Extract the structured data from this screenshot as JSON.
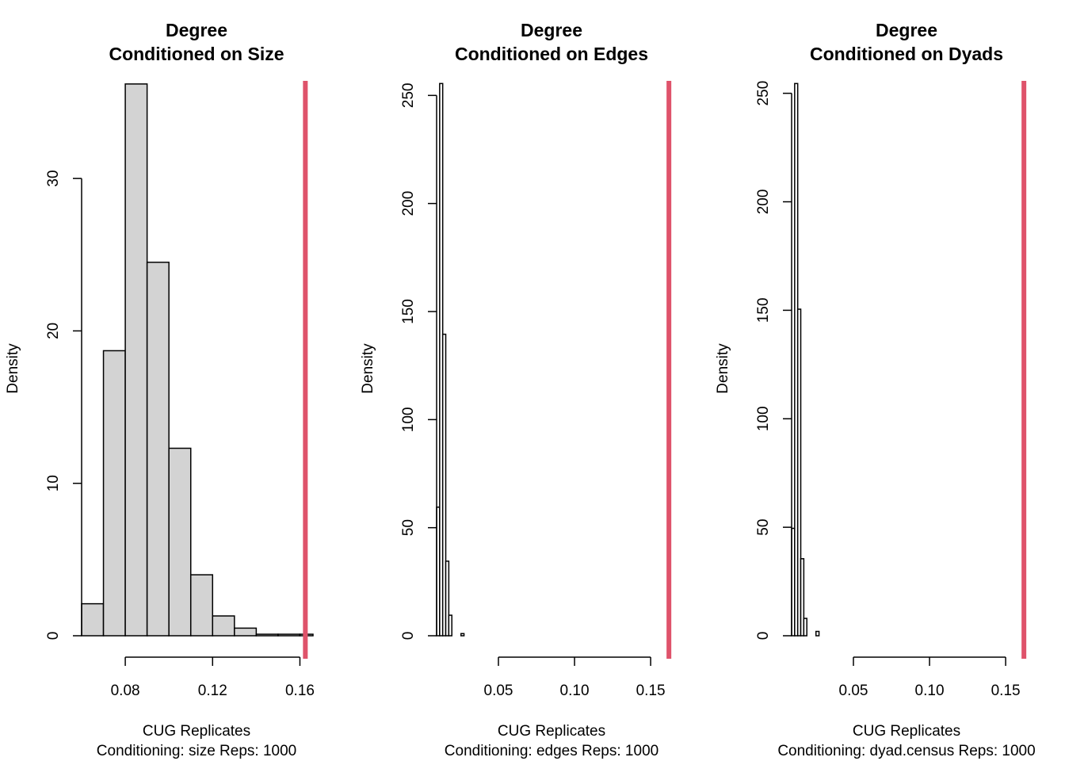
{
  "chart_data": [
    {
      "type": "bar",
      "title_line1": "Degree",
      "title_line2": "Conditioned on Size",
      "xlabel_line1": "CUG Replicates",
      "xlabel_line2": "Conditioning: size Reps: 1000",
      "ylabel": "Density",
      "xlim": [
        0.06,
        0.166
      ],
      "ylim": [
        0,
        36.3
      ],
      "x_ticks": [
        0.08,
        0.12,
        0.16
      ],
      "x_tick_labels": [
        "0.08",
        "0.12",
        "0.16"
      ],
      "y_ticks": [
        0,
        10,
        20,
        30
      ],
      "y_tick_labels": [
        "0",
        "10",
        "20",
        "30"
      ],
      "bin_edges": [
        0.06,
        0.07,
        0.08,
        0.09,
        0.1,
        0.11,
        0.12,
        0.13,
        0.14,
        0.15,
        0.16,
        0.166
      ],
      "values": [
        2.1,
        18.7,
        36.2,
        24.5,
        12.3,
        4.0,
        1.3,
        0.5,
        0.1,
        0.1,
        0.1
      ],
      "observed": 0.1625,
      "bar_fill": "#d3d3d3",
      "observed_color": "#df536b"
    },
    {
      "type": "bar",
      "title_line1": "Degree",
      "title_line2": "Conditioned on Edges",
      "xlabel_line1": "CUG Replicates",
      "xlabel_line2": "Conditioning: edges Reps: 1000",
      "ylabel": "Density",
      "xlim": [
        0.0094,
        0.1614
      ],
      "ylim": [
        0,
        256
      ],
      "x_ticks": [
        0.05,
        0.1,
        0.15
      ],
      "x_tick_labels": [
        "0.05",
        "0.10",
        "0.15"
      ],
      "y_ticks": [
        0,
        50,
        100,
        150,
        200,
        250
      ],
      "y_tick_labels": [
        "0",
        "50",
        "100",
        "150",
        "200",
        "250"
      ],
      "bin_edges": [
        0.0094,
        0.0114,
        0.0134,
        0.0154,
        0.0174,
        0.0194,
        0.0214,
        0.0234,
        0.0254,
        0.0274
      ],
      "values": [
        59.5,
        255.5,
        139.5,
        34.5,
        9.5,
        0,
        0,
        0,
        1
      ],
      "observed": 0.162,
      "bar_fill": "#ffffff",
      "observed_color": "#df536b"
    },
    {
      "type": "bar",
      "title_line1": "Degree",
      "title_line2": "Conditioned on Dyads",
      "xlabel_line1": "CUG Replicates",
      "xlabel_line2": "Conditioning: dyad.census Reps: 1000",
      "ylabel": "Density",
      "xlim": [
        0.0094,
        0.1614
      ],
      "ylim": [
        0,
        255
      ],
      "x_ticks": [
        0.05,
        0.1,
        0.15
      ],
      "x_tick_labels": [
        "0.05",
        "0.10",
        "0.15"
      ],
      "y_ticks": [
        0,
        50,
        100,
        150,
        200,
        250
      ],
      "y_tick_labels": [
        "0",
        "50",
        "100",
        "150",
        "200",
        "250"
      ],
      "bin_edges": [
        0.0094,
        0.0114,
        0.0134,
        0.0154,
        0.0174,
        0.0194,
        0.0214,
        0.0234,
        0.0254,
        0.0274
      ],
      "values": [
        49.5,
        254.5,
        150.5,
        35.5,
        8,
        0,
        0,
        0,
        2
      ],
      "observed": 0.162,
      "bar_fill": "#ffffff",
      "observed_color": "#df536b"
    }
  ]
}
